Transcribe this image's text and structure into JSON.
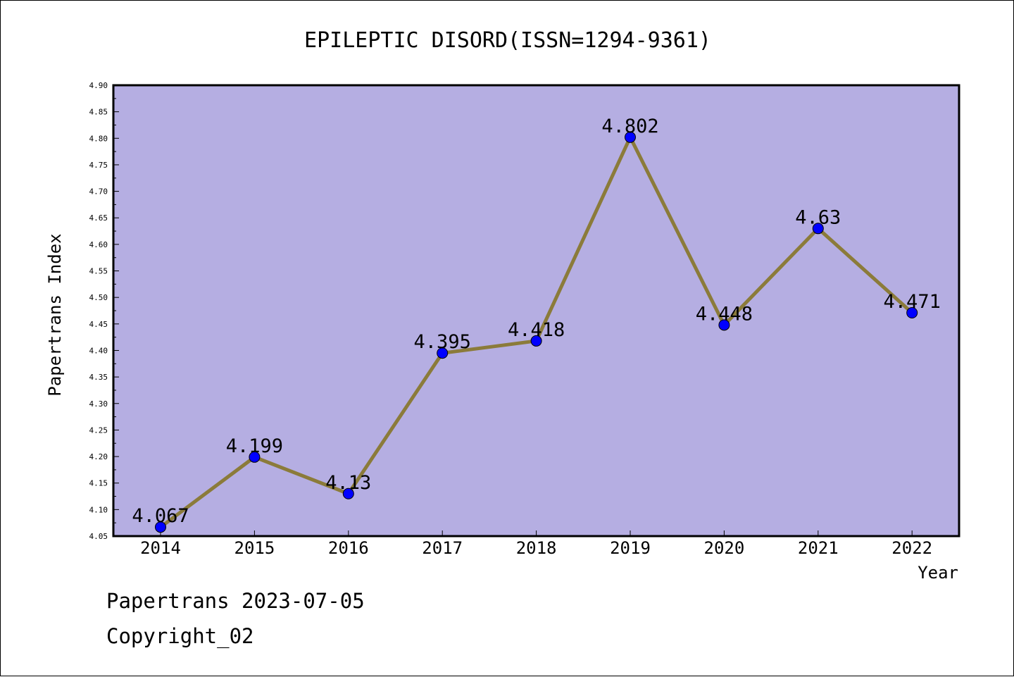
{
  "chart_data": {
    "type": "line",
    "title": "EPILEPTIC DISORD(ISSN=1294-9361)",
    "xlabel": "Year",
    "ylabel": "Papertrans Index",
    "categories": [
      "2014",
      "2015",
      "2016",
      "2017",
      "2018",
      "2019",
      "2020",
      "2021",
      "2022"
    ],
    "series": [
      {
        "values": [
          4.067,
          4.199,
          4.13,
          4.395,
          4.418,
          4.802,
          4.448,
          4.63,
          4.471
        ],
        "labels": [
          "4.067",
          "4.199",
          "4.13",
          "4.395",
          "4.418",
          "4.802",
          "4.448",
          "4.63",
          "4.471"
        ]
      }
    ],
    "ylim": [
      4.05,
      4.9
    ],
    "yticks": [
      "4.05",
      "4.10",
      "4.15",
      "4.20",
      "4.25",
      "4.30",
      "4.35",
      "4.40",
      "4.45",
      "4.50",
      "4.55",
      "4.60",
      "4.65",
      "4.70",
      "4.75",
      "4.80",
      "4.85",
      "4.90"
    ],
    "grid": false,
    "colors": {
      "plot_background": "#b5aee2",
      "line": "#8b7b3a",
      "marker": "#0000ff"
    }
  },
  "footer": {
    "source": "Papertrans 2023-07-05",
    "copyright": "Copyright_02"
  }
}
